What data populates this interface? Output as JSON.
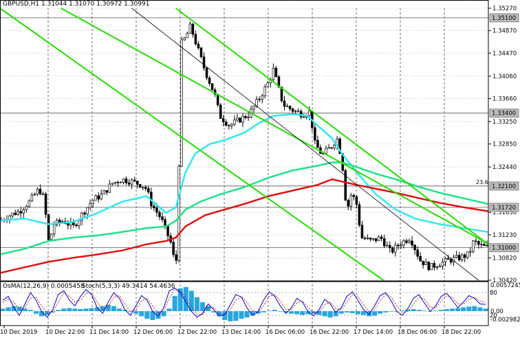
{
  "title": "GBPUSD,H1  1.31044 1.31070 1.30972 1.30991",
  "colors": {
    "background": "#ffffff",
    "grid": "#000000",
    "bull_candle": "#ffffff",
    "bear_candle": "#000000",
    "ema_fast": "#33e6f2",
    "ema_mid": "#20e08a",
    "ema_slow": "#e01010",
    "channel": "#22dd00",
    "trendline": "#000000",
    "stoch_main": "#0000cc",
    "stoch_signal": "#cc0000",
    "osma": "#29a6e0"
  },
  "chart_data": [
    {
      "type": "candlestick",
      "symbol": "GBPUSD",
      "timeframe": "H1",
      "ylim": [
        1.3042,
        1.3527
      ],
      "y_ticks": [
        "1.35270",
        "1.34870",
        "1.34470",
        "1.34060",
        "1.33660",
        "1.33250",
        "1.32850",
        "1.32440",
        "1.31630",
        "1.31230",
        "1.30820",
        "1.30420"
      ],
      "x_ticks": [
        "10 Dec 2019",
        "10 Dec 22:00",
        "11 Dec 14:00",
        "12 Dec 06:00",
        "12 Dec 22:00",
        "13 Dec 14:00",
        "16 Dec 06:00",
        "16 Dec 22:00",
        "17 Dec 14:00",
        "18 Dec 06:00",
        "18 Dec 22:00"
      ],
      "levels": [
        {
          "value": 1.351,
          "label": "1.35100"
        },
        {
          "value": 1.334,
          "label": "1.33400"
        },
        {
          "value": 1.321,
          "label": "1.32100"
        },
        {
          "value": 1.3172,
          "label": "1.31720"
        },
        {
          "value": 1.31,
          "label": "1.31000"
        }
      ],
      "fib_label": "23.6",
      "price_path": [
        [
          0,
          1.3148
        ],
        [
          0.02,
          1.3158
        ],
        [
          0.04,
          1.3165
        ],
        [
          0.06,
          1.3182
        ],
        [
          0.08,
          1.3205
        ],
        [
          0.09,
          1.3188
        ],
        [
          0.1,
          1.3108
        ],
        [
          0.11,
          1.3142
        ],
        [
          0.13,
          1.3148
        ],
        [
          0.15,
          1.3137
        ],
        [
          0.17,
          1.3162
        ],
        [
          0.19,
          1.3185
        ],
        [
          0.21,
          1.3195
        ],
        [
          0.23,
          1.3215
        ],
        [
          0.25,
          1.3222
        ],
        [
          0.27,
          1.3218
        ],
        [
          0.29,
          1.3212
        ],
        [
          0.3,
          1.3205
        ],
        [
          0.31,
          1.3178
        ],
        [
          0.33,
          1.3152
        ],
        [
          0.35,
          1.3108
        ],
        [
          0.36,
          1.3062
        ],
        [
          0.365,
          1.3162
        ],
        [
          0.37,
          1.3462
        ],
        [
          0.38,
          1.3475
        ],
        [
          0.39,
          1.3495
        ],
        [
          0.4,
          1.3468
        ],
        [
          0.42,
          1.3415
        ],
        [
          0.44,
          1.3372
        ],
        [
          0.45,
          1.3335
        ],
        [
          0.47,
          1.3318
        ],
        [
          0.49,
          1.3328
        ],
        [
          0.51,
          1.3338
        ],
        [
          0.53,
          1.3365
        ],
        [
          0.55,
          1.3395
        ],
        [
          0.56,
          1.3418
        ],
        [
          0.57,
          1.3385
        ],
        [
          0.58,
          1.3355
        ],
        [
          0.6,
          1.3345
        ],
        [
          0.62,
          1.3338
        ],
        [
          0.635,
          1.3342
        ],
        [
          0.645,
          1.3285
        ],
        [
          0.66,
          1.3265
        ],
        [
          0.68,
          1.3282
        ],
        [
          0.69,
          1.3295
        ],
        [
          0.7,
          1.3258
        ],
        [
          0.71,
          1.3165
        ],
        [
          0.72,
          1.3198
        ],
        [
          0.73,
          1.3178
        ],
        [
          0.74,
          1.3118
        ],
        [
          0.76,
          1.3112
        ],
        [
          0.78,
          1.3118
        ],
        [
          0.8,
          1.3092
        ],
        [
          0.82,
          1.3108
        ],
        [
          0.84,
          1.3118
        ],
        [
          0.86,
          1.3078
        ],
        [
          0.88,
          1.3065
        ],
        [
          0.9,
          1.3072
        ],
        [
          0.92,
          1.3078
        ],
        [
          0.94,
          1.3082
        ],
        [
          0.95,
          1.3085
        ],
        [
          0.96,
          1.3088
        ],
        [
          0.97,
          1.3112
        ],
        [
          0.98,
          1.3105
        ],
        [
          1.0,
          1.3099
        ]
      ],
      "indicators": [
        {
          "path": [
            [
              0,
              1.3148
            ],
            [
              0.05,
              1.3152
            ],
            [
              0.1,
              1.3142
            ],
            [
              0.15,
              1.3146
            ],
            [
              0.2,
              1.3162
            ],
            [
              0.25,
              1.3182
            ],
            [
              0.3,
              1.3192
            ],
            [
              0.34,
              1.3162
            ],
            [
              0.36,
              1.3172
            ],
            [
              0.38,
              1.3235
            ],
            [
              0.4,
              1.3268
            ],
            [
              0.43,
              1.3285
            ],
            [
              0.46,
              1.3292
            ],
            [
              0.5,
              1.3305
            ],
            [
              0.53,
              1.3322
            ],
            [
              0.56,
              1.3335
            ],
            [
              0.6,
              1.3338
            ],
            [
              0.63,
              1.3335
            ],
            [
              0.65,
              1.3318
            ],
            [
              0.68,
              1.3295
            ],
            [
              0.7,
              1.3268
            ],
            [
              0.73,
              1.3235
            ],
            [
              0.77,
              1.3195
            ],
            [
              0.81,
              1.3168
            ],
            [
              0.85,
              1.3152
            ],
            [
              0.9,
              1.3142
            ],
            [
              0.95,
              1.3135
            ],
            [
              1.0,
              1.3128
            ]
          ]
        },
        {
          "path": [
            [
              0,
              1.3088
            ],
            [
              0.05,
              1.3098
            ],
            [
              0.1,
              1.3112
            ],
            [
              0.15,
              1.3118
            ],
            [
              0.2,
              1.3122
            ],
            [
              0.25,
              1.3128
            ],
            [
              0.3,
              1.3135
            ],
            [
              0.34,
              1.3138
            ],
            [
              0.36,
              1.3148
            ],
            [
              0.38,
              1.3168
            ],
            [
              0.41,
              1.3182
            ],
            [
              0.45,
              1.3195
            ],
            [
              0.5,
              1.3208
            ],
            [
              0.55,
              1.3225
            ],
            [
              0.6,
              1.3238
            ],
            [
              0.65,
              1.3246
            ],
            [
              0.68,
              1.3252
            ],
            [
              0.7,
              1.3252
            ],
            [
              0.73,
              1.3244
            ],
            [
              0.77,
              1.3232
            ],
            [
              0.81,
              1.3222
            ],
            [
              0.86,
              1.3208
            ],
            [
              0.9,
              1.3198
            ],
            [
              0.95,
              1.3188
            ],
            [
              1.0,
              1.3178
            ]
          ]
        },
        {
          "path": [
            [
              0,
              1.3055
            ],
            [
              0.05,
              1.3065
            ],
            [
              0.1,
              1.3075
            ],
            [
              0.15,
              1.3082
            ],
            [
              0.2,
              1.3088
            ],
            [
              0.25,
              1.3095
            ],
            [
              0.3,
              1.3106
            ],
            [
              0.34,
              1.3112
            ],
            [
              0.36,
              1.3118
            ],
            [
              0.38,
              1.3138
            ],
            [
              0.42,
              1.3158
            ],
            [
              0.46,
              1.3168
            ],
            [
              0.5,
              1.3178
            ],
            [
              0.55,
              1.3192
            ],
            [
              0.6,
              1.3202
            ],
            [
              0.65,
              1.3212
            ],
            [
              0.68,
              1.3222
            ],
            [
              0.7,
              1.3218
            ],
            [
              0.73,
              1.3212
            ],
            [
              0.77,
              1.3205
            ],
            [
              0.81,
              1.3198
            ],
            [
              0.86,
              1.3188
            ],
            [
              0.9,
              1.318
            ],
            [
              0.95,
              1.3172
            ],
            [
              1.0,
              1.3165
            ]
          ]
        }
      ],
      "channel_lines": [
        [
          [
            0.125,
            1.3527
          ],
          [
            1.0,
            1.3107
          ]
        ],
        [
          [
            0.0,
            1.3527
          ],
          [
            0.785,
            1.3042
          ]
        ],
        [
          [
            0.36,
            1.3527
          ],
          [
            1.0,
            1.3106
          ]
        ]
      ],
      "trendline": [
        [
          0.27,
          1.3527
        ],
        [
          0.98,
          1.3042
        ]
      ]
    },
    {
      "type": "oscillator",
      "labels": {
        "osma": "OsMA(12,26,9) 0.0005458",
        "stoch": "Stoch(5,3,3) 49.3414 54.4636"
      },
      "y_ticks": [
        "0.0057245",
        "0.00",
        "-0.002982"
      ],
      "stoch_levels": [
        "80",
        "20"
      ],
      "osma": [
        0.1,
        0.15,
        0.2,
        0.18,
        0.1,
        0.05,
        -0.1,
        -0.2,
        -0.15,
        -0.05,
        0.05,
        0.1,
        0.12,
        0.1,
        0.08,
        0.1,
        0.12,
        0.15,
        0.2,
        0.25,
        0.2,
        0.1,
        0.05,
        0.0,
        -0.1,
        -0.2,
        -0.3,
        -0.35,
        -0.3,
        -0.2,
        0.1,
        0.6,
        0.9,
        0.95,
        0.8,
        0.55,
        0.35,
        0.2,
        -0.05,
        -0.2,
        -0.35,
        -0.4,
        -0.38,
        -0.3,
        -0.25,
        -0.18,
        -0.1,
        -0.05,
        0.02,
        0.05,
        0.0,
        -0.05,
        -0.1,
        -0.12,
        -0.15,
        -0.12,
        -0.1,
        -0.15,
        -0.2,
        -0.25,
        -0.2,
        -0.1,
        -0.05,
        -0.08,
        -0.12,
        -0.15,
        -0.2,
        -0.18,
        -0.1,
        -0.05,
        -0.02,
        0.0,
        0.02,
        0.05,
        0.08,
        0.05,
        0.02,
        0.0,
        0.02,
        0.05,
        0.08,
        0.1,
        0.12,
        0.15,
        0.18,
        0.2,
        0.15,
        0.1
      ],
      "stoch_main": [
        60,
        70,
        40,
        20,
        50,
        80,
        60,
        30,
        15,
        35,
        75,
        85,
        60,
        45,
        70,
        88,
        75,
        40,
        25,
        55,
        80,
        65,
        35,
        20,
        45,
        72,
        60,
        30,
        18,
        40,
        85,
        92,
        80,
        55,
        30,
        15,
        25,
        50,
        35,
        18,
        22,
        48,
        75,
        68,
        40,
        20,
        30,
        60,
        82,
        70,
        45,
        25,
        40,
        65,
        55,
        30,
        18,
        35,
        62,
        50,
        28,
        40,
        70,
        82,
        60,
        35,
        22,
        45,
        72,
        80,
        58,
        30,
        20,
        38,
        65,
        75,
        52,
        30,
        45,
        70,
        78,
        60,
        40,
        55,
        72,
        65,
        50,
        49
      ],
      "stoch_signal": [
        55,
        62,
        55,
        35,
        40,
        65,
        68,
        45,
        25,
        28,
        55,
        78,
        70,
        55,
        60,
        78,
        80,
        55,
        35,
        42,
        68,
        72,
        50,
        30,
        35,
        58,
        65,
        45,
        25,
        32,
        65,
        88,
        85,
        65,
        42,
        22,
        22,
        40,
        40,
        25,
        22,
        35,
        60,
        70,
        55,
        32,
        28,
        45,
        70,
        75,
        58,
        35,
        35,
        52,
        58,
        42,
        25,
        28,
        48,
        55,
        38,
        35,
        55,
        75,
        70,
        48,
        30,
        35,
        58,
        75,
        68,
        45,
        28,
        30,
        50,
        68,
        62,
        42,
        40,
        58,
        72,
        68,
        50,
        50,
        62,
        68,
        58,
        54
      ]
    }
  ]
}
